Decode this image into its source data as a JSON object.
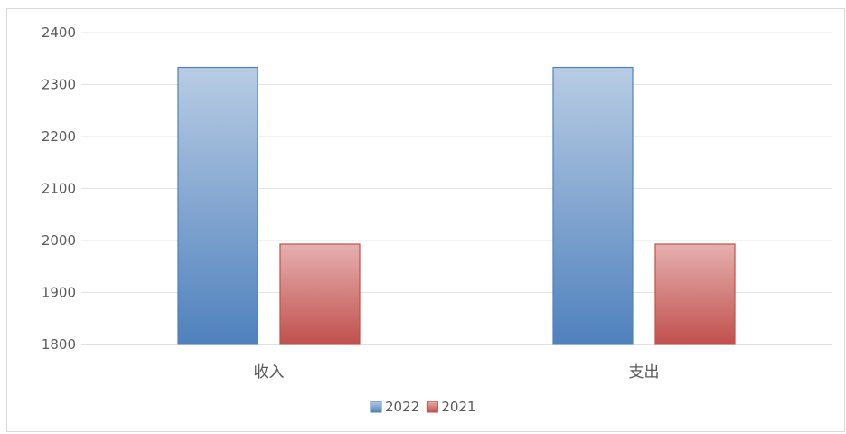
{
  "chart_data": {
    "type": "bar",
    "title": "",
    "xlabel": "",
    "ylabel": "",
    "categories": [
      "收入",
      "支出"
    ],
    "series": [
      {
        "name": "2022",
        "values": [
          2333,
          2333
        ],
        "color": "#4f81bd"
      },
      {
        "name": "2021",
        "values": [
          1993,
          1993
        ],
        "color": "#c0504d"
      }
    ],
    "ylim": [
      1800,
      2400
    ],
    "yticks": [
      1800,
      1900,
      2000,
      2100,
      2200,
      2300,
      2400
    ],
    "grid": true,
    "legend": "bottom"
  }
}
